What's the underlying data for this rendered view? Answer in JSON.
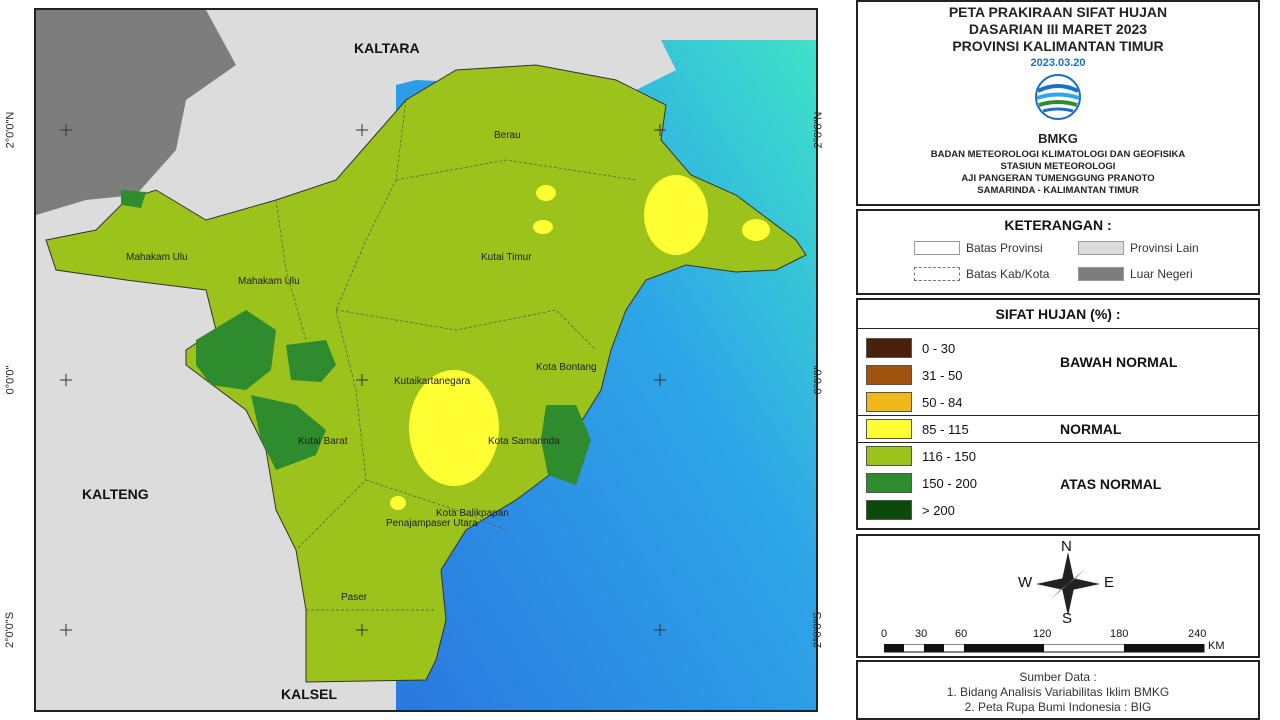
{
  "title": {
    "line1": "PETA PRAKIRAAN SIFAT HUJAN",
    "line2": "DASARIAN III MARET 2023",
    "line3": "PROVINSI KALIMANTAN TIMUR",
    "date": "2023.03.20",
    "logo_text": "BMKG",
    "inst1": "BADAN METEOROLOGI KLIMATOLOGI DAN GEOFISIKA",
    "inst2": "STASIUN METEOROLOGI",
    "inst3": "AJI PANGERAN TUMENGGUNG PRANOTO",
    "inst4": "SAMARINDA - KALIMANTAN TIMUR"
  },
  "keterangan": {
    "title": "KETERANGAN :",
    "items": [
      "Batas Provinsi",
      "Provinsi Lain",
      "Batas Kab/Kota",
      "Luar Negeri"
    ]
  },
  "sifat_hujan": {
    "title": "SIFAT HUJAN (%) :",
    "classes": [
      {
        "label": "0 - 30",
        "color": "#4a1f0c"
      },
      {
        "label": "31 - 50",
        "color": "#a0520f"
      },
      {
        "label": "50 - 84",
        "color": "#f0b81a"
      },
      {
        "label": "85 - 115",
        "color": "#ffff33"
      },
      {
        "label": "116 - 150",
        "color": "#9cc21c"
      },
      {
        "label": "150 - 200",
        "color": "#2e8b2e"
      },
      {
        "label": "> 200",
        "color": "#0c4a0c"
      }
    ],
    "categories": [
      "BAWAH NORMAL",
      "NORMAL",
      "ATAS NORMAL"
    ]
  },
  "compass": {
    "n": "N",
    "s": "S",
    "e": "E",
    "w": "W"
  },
  "scale": {
    "ticks": [
      "0",
      "30",
      "60",
      "120",
      "180",
      "240"
    ],
    "unit": "KM"
  },
  "source": {
    "title": "Sumber Data :",
    "line1": "1. Bidang Analisis Variabilitas Iklim BMKG",
    "line2": "2. Peta Rupa Bumi Indonesia : BIG"
  },
  "map": {
    "provinces": [
      "KALTARA",
      "KALTENG",
      "KALSEL"
    ],
    "regencies": [
      "Berau",
      "Mahakam Ulu",
      "Mahakam Ulu",
      "Kutai Timur",
      "Kota Bontang",
      "Kutaikartanegara",
      "Kota Samarinda",
      "Kutai Barat",
      "Kota Balikpapan",
      "Penajampaser Utara",
      "Paser"
    ],
    "lat_labels": [
      "2°0'0\"N",
      "0°0'0\"",
      "2°0'0\"S"
    ]
  }
}
